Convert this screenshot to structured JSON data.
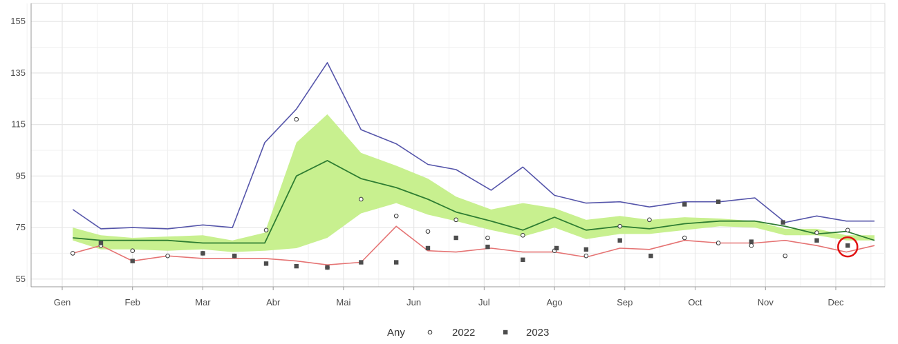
{
  "chart_data": {
    "type": "line",
    "title": "",
    "xlabel": "",
    "ylabel": "",
    "ylim": [
      52,
      162
    ],
    "y_ticks": [
      55,
      75,
      95,
      115,
      135,
      155
    ],
    "x_ticks": [
      "Gen",
      "Feb",
      "Mar",
      "Abr",
      "Mai",
      "Jun",
      "Jul",
      "Ago",
      "Sep",
      "Oct",
      "Nov",
      "Dec"
    ],
    "grid": true,
    "legend": {
      "position": "bottom",
      "title": "Any",
      "entries": [
        {
          "label": "2022",
          "marker": "open-circle"
        },
        {
          "label": "2023",
          "marker": "filled-square"
        }
      ]
    },
    "colors": {
      "band": "#c8f08f",
      "median": "#2e7d32",
      "upper": "#5555aa",
      "lower": "#e57373",
      "grid": "#e6e6e6",
      "points_2022": "#333333",
      "points_2023": "#4d4d4d",
      "highlight": "#e01010"
    },
    "x": [
      0.15,
      0.55,
      1.0,
      1.5,
      2.0,
      2.42,
      2.88,
      3.33,
      3.77,
      4.25,
      4.75,
      5.2,
      5.6,
      6.1,
      6.55,
      7.0,
      7.45,
      7.93,
      8.35,
      8.85,
      9.35,
      9.85,
      10.28,
      10.73,
      11.15,
      11.55
    ],
    "series": [
      {
        "role": "upper_line",
        "values": [
          82,
          74.5,
          75,
          74.5,
          76,
          75,
          108,
          121,
          139,
          113,
          107.5,
          99.5,
          97.5,
          89.5,
          98.5,
          87.5,
          84.5,
          85,
          83,
          85,
          85,
          86.5,
          77,
          79.5,
          77.5,
          77.5
        ]
      },
      {
        "role": "band_upper",
        "values": [
          75,
          72,
          71,
          71.5,
          72,
          70,
          73,
          108,
          119,
          104,
          99,
          94,
          87,
          82,
          84.5,
          82.5,
          78,
          79.5,
          78,
          79,
          78.5,
          77.5,
          74.5,
          74.5,
          72,
          72
        ]
      },
      {
        "role": "band_lower",
        "values": [
          70,
          66.5,
          66.5,
          66,
          66.5,
          65.5,
          66,
          67,
          71,
          80.5,
          84.5,
          80,
          77.5,
          74,
          71.5,
          75,
          70.5,
          72.5,
          72.5,
          74,
          75.5,
          75,
          72,
          72,
          70,
          70
        ]
      },
      {
        "role": "median_line",
        "values": [
          71,
          70,
          70,
          70,
          69,
          69,
          69,
          95,
          101,
          94,
          90.5,
          86,
          81,
          77.5,
          74,
          79,
          74,
          75.5,
          74.5,
          76.5,
          77.5,
          77.5,
          75.5,
          72.5,
          73.5,
          70
        ]
      },
      {
        "role": "lower_line",
        "values": [
          65,
          68,
          62,
          64,
          63,
          63,
          63,
          62,
          60.5,
          61.5,
          75.5,
          66,
          65.5,
          67,
          65.5,
          65.5,
          63.5,
          67,
          66.5,
          70,
          69,
          69,
          70,
          68,
          65.5,
          68
        ]
      }
    ],
    "points": [
      {
        "name": "2022",
        "x": [
          0.15,
          0.55,
          1.0,
          1.5,
          2.0,
          2.45,
          2.9,
          3.33,
          3.77,
          4.25,
          4.75,
          5.2,
          5.6,
          6.05,
          6.55,
          7.0,
          7.45,
          7.93,
          8.35,
          8.85,
          9.33,
          9.8,
          10.28,
          10.73,
          11.17
        ],
        "values": [
          65,
          68,
          66,
          64,
          65,
          64,
          74,
          117,
          59.5,
          86,
          79.5,
          73.5,
          78,
          71,
          72,
          66,
          64,
          75.5,
          78,
          71,
          69,
          68,
          64,
          73,
          74
        ]
      },
      {
        "name": "2023",
        "x": [
          0.55,
          1.0,
          2.0,
          2.45,
          2.9,
          3.33,
          3.77,
          4.25,
          4.75,
          5.2,
          5.6,
          6.05,
          6.55,
          7.03,
          7.45,
          7.93,
          8.37,
          8.85,
          9.33,
          9.8,
          10.25,
          10.73,
          11.17
        ],
        "values": [
          69,
          62,
          65,
          64,
          61,
          60,
          59.5,
          61.5,
          61.5,
          67,
          71,
          67.5,
          62.5,
          67,
          66.5,
          70,
          64,
          84,
          85,
          69.5,
          77,
          70,
          68
        ]
      }
    ],
    "highlight": {
      "x": 11.17,
      "value": 67.5
    }
  }
}
